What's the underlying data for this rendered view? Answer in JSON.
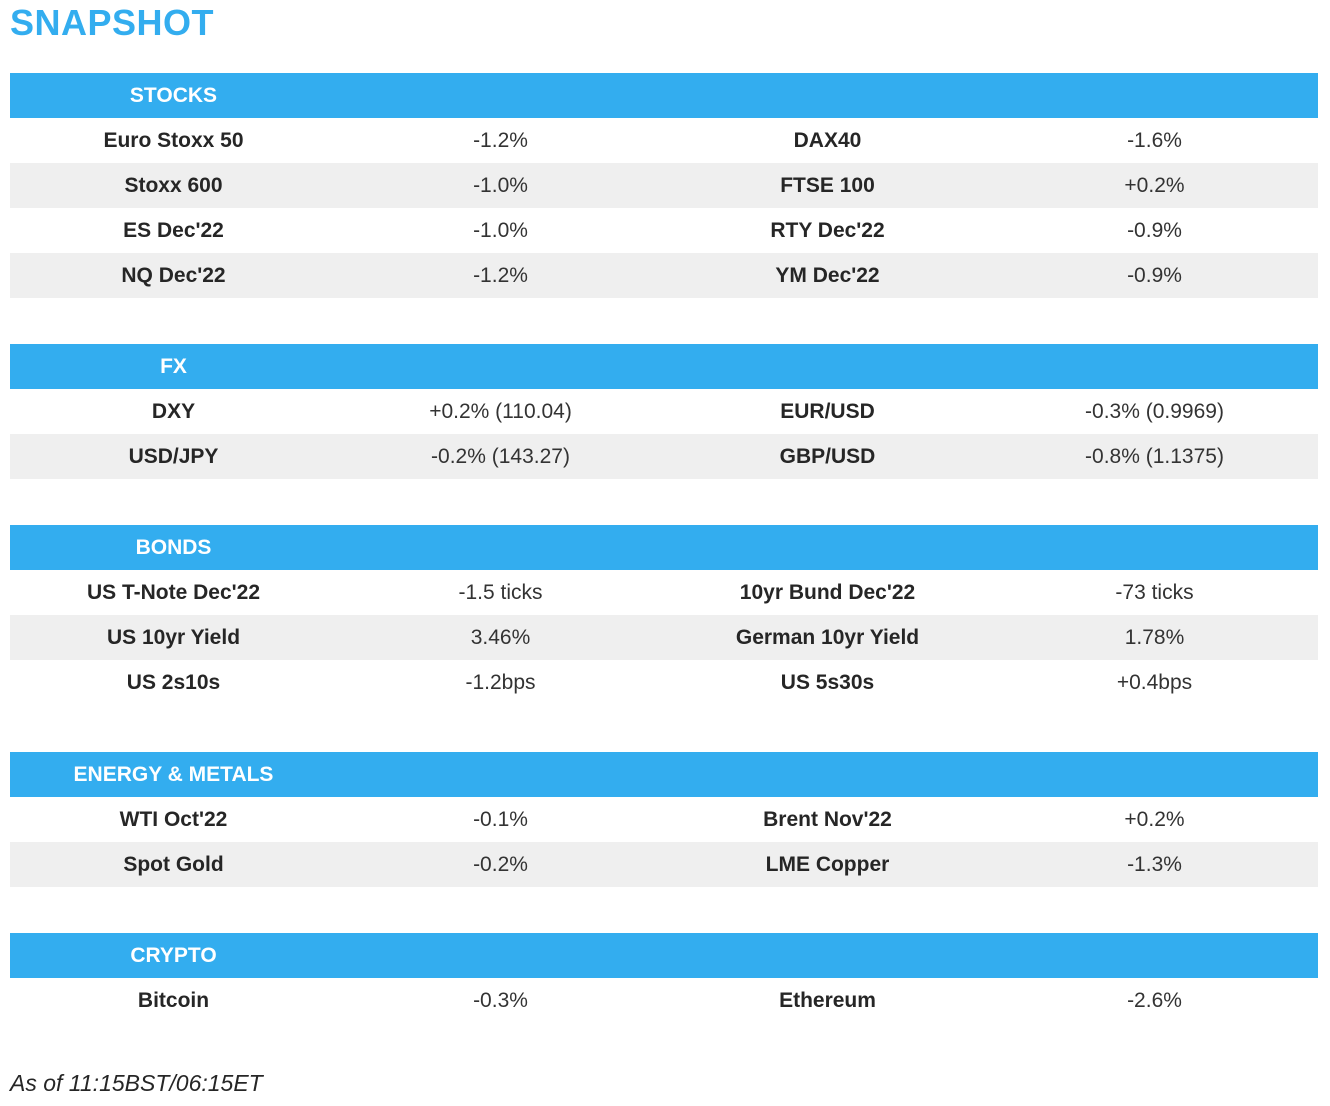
{
  "title": "SNAPSHOT",
  "sections": {
    "stocks": {
      "header": "STOCKS",
      "rows": [
        {
          "name1": "Euro Stoxx 50",
          "value1": "-1.2%",
          "name2": "DAX40",
          "value2": "-1.6%"
        },
        {
          "name1": "Stoxx 600",
          "value1": "-1.0%",
          "name2": "FTSE 100",
          "value2": "+0.2%"
        },
        {
          "name1": "ES Dec'22",
          "value1": "-1.0%",
          "name2": "RTY Dec'22",
          "value2": "-0.9%"
        },
        {
          "name1": "NQ Dec'22",
          "value1": "-1.2%",
          "name2": "YM Dec'22",
          "value2": "-0.9%"
        }
      ]
    },
    "fx": {
      "header": "FX",
      "rows": [
        {
          "name1": "DXY",
          "value1": "+0.2% (110.04)",
          "name2": "EUR/USD",
          "value2": "-0.3% (0.9969)"
        },
        {
          "name1": "USD/JPY",
          "value1": "-0.2% (143.27)",
          "name2": "GBP/USD",
          "value2": "-0.8% (1.1375)"
        }
      ]
    },
    "bonds": {
      "header": "BONDS",
      "rows": [
        {
          "name1": "US T-Note Dec'22",
          "value1": "-1.5 ticks",
          "name2": "10yr Bund Dec'22",
          "value2": "-73 ticks"
        },
        {
          "name1": "US 10yr Yield",
          "value1": "3.46%",
          "name2": "German 10yr Yield",
          "value2": "1.78%"
        },
        {
          "name1": "US 2s10s",
          "value1": "-1.2bps",
          "name2": "US 5s30s",
          "value2": "+0.4bps"
        }
      ]
    },
    "energy": {
      "header": "ENERGY & METALS",
      "rows": [
        {
          "name1": "WTI Oct'22",
          "value1": "-0.1%",
          "name2": "Brent Nov'22",
          "value2": "+0.2%"
        },
        {
          "name1": "Spot Gold",
          "value1": "-0.2%",
          "name2": "LME Copper",
          "value2": "-1.3%"
        }
      ]
    },
    "crypto": {
      "header": "CRYPTO",
      "rows": [
        {
          "name1": "Bitcoin",
          "value1": "-0.3%",
          "name2": "Ethereum",
          "value2": "-2.6%"
        }
      ]
    }
  },
  "footer": "As of 11:15BST/06:15ET"
}
